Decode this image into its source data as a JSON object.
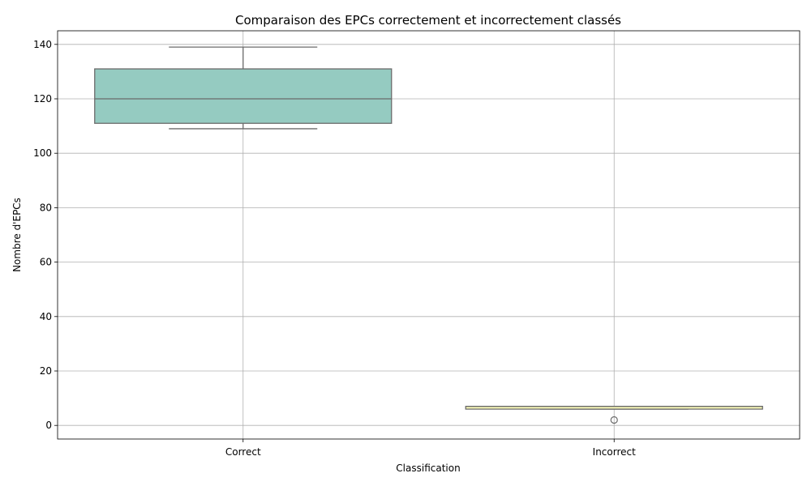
{
  "chart_data": {
    "type": "box",
    "title": "Comparaison des EPCs correctement et incorrectement classés",
    "xlabel": "Classification",
    "ylabel": "Nombre d'EPCs",
    "categories": [
      "Correct",
      "Incorrect"
    ],
    "ylim": [
      -5,
      145
    ],
    "yticks": [
      0,
      20,
      40,
      60,
      80,
      100,
      120,
      140
    ],
    "grid": true,
    "boxes": [
      {
        "category": "Correct",
        "whisker_low": 109,
        "q1": 111,
        "median": 120,
        "q3": 131,
        "whisker_high": 139,
        "outliers": [],
        "color": "#95cbc1"
      },
      {
        "category": "Incorrect",
        "whisker_low": 6,
        "q1": 6,
        "median": 7,
        "q3": 7,
        "whisker_high": 7,
        "outliers": [
          2
        ],
        "color": "#ffffbb"
      }
    ]
  }
}
